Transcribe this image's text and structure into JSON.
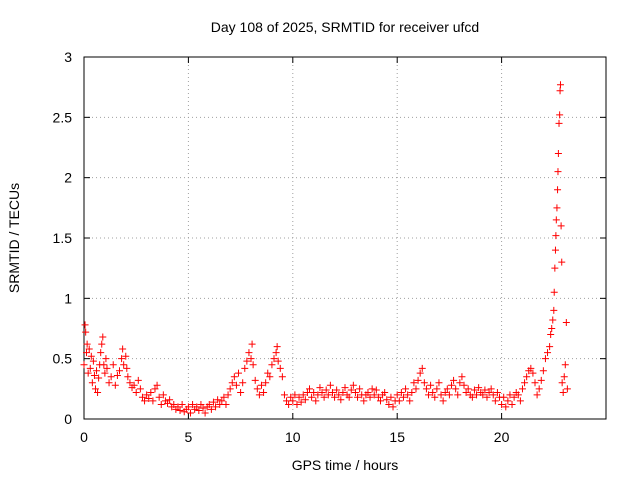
{
  "chart_data": {
    "type": "scatter",
    "title": "Day 108 of 2025, SRMTID for receiver ufcd",
    "xlabel": "GPS time / hours",
    "ylabel": "SRMTID / TECUs",
    "xlim": [
      0,
      25
    ],
    "ylim": [
      0,
      3
    ],
    "xticks": [
      0,
      5,
      10,
      15,
      20
    ],
    "yticks": [
      0,
      0.5,
      1,
      1.5,
      2,
      2.5,
      3
    ],
    "ytick_labels": [
      "0",
      "0.5",
      "1",
      "1.5",
      "2",
      "2.5",
      "3"
    ],
    "grid": true,
    "marker": "+",
    "color": "#ff0000",
    "series": [
      {
        "name": "SRMTID",
        "points": [
          [
            0.0,
            0.45
          ],
          [
            0.05,
            0.78
          ],
          [
            0.08,
            0.72
          ],
          [
            0.12,
            0.55
          ],
          [
            0.15,
            0.62
          ],
          [
            0.2,
            0.38
          ],
          [
            0.25,
            0.58
          ],
          [
            0.3,
            0.42
          ],
          [
            0.35,
            0.52
          ],
          [
            0.4,
            0.3
          ],
          [
            0.45,
            0.48
          ],
          [
            0.5,
            0.36
          ],
          [
            0.55,
            0.25
          ],
          [
            0.6,
            0.4
          ],
          [
            0.65,
            0.22
          ],
          [
            0.7,
            0.34
          ],
          [
            0.75,
            0.45
          ],
          [
            0.8,
            0.55
          ],
          [
            0.85,
            0.62
          ],
          [
            0.9,
            0.68
          ],
          [
            0.95,
            0.45
          ],
          [
            1.0,
            0.38
          ],
          [
            1.05,
            0.5
          ],
          [
            1.1,
            0.42
          ],
          [
            1.2,
            0.3
          ],
          [
            1.3,
            0.35
          ],
          [
            1.4,
            0.45
          ],
          [
            1.5,
            0.28
          ],
          [
            1.6,
            0.36
          ],
          [
            1.7,
            0.4
          ],
          [
            1.8,
            0.5
          ],
          [
            1.85,
            0.58
          ],
          [
            1.9,
            0.45
          ],
          [
            2.0,
            0.52
          ],
          [
            2.05,
            0.42
          ],
          [
            2.1,
            0.35
          ],
          [
            2.2,
            0.3
          ],
          [
            2.3,
            0.26
          ],
          [
            2.4,
            0.28
          ],
          [
            2.5,
            0.22
          ],
          [
            2.6,
            0.32
          ],
          [
            2.7,
            0.25
          ],
          [
            2.8,
            0.18
          ],
          [
            2.9,
            0.15
          ],
          [
            3.0,
            0.2
          ],
          [
            3.1,
            0.17
          ],
          [
            3.2,
            0.22
          ],
          [
            3.3,
            0.15
          ],
          [
            3.4,
            0.25
          ],
          [
            3.5,
            0.28
          ],
          [
            3.6,
            0.18
          ],
          [
            3.7,
            0.12
          ],
          [
            3.8,
            0.2
          ],
          [
            3.9,
            0.15
          ],
          [
            4.0,
            0.13
          ],
          [
            4.1,
            0.16
          ],
          [
            4.2,
            0.1
          ],
          [
            4.3,
            0.12
          ],
          [
            4.4,
            0.08
          ],
          [
            4.5,
            0.1
          ],
          [
            4.6,
            0.07
          ],
          [
            4.7,
            0.12
          ],
          [
            4.8,
            0.06
          ],
          [
            4.9,
            0.08
          ],
          [
            5.0,
            0.1
          ],
          [
            5.1,
            0.05
          ],
          [
            5.2,
            0.12
          ],
          [
            5.3,
            0.08
          ],
          [
            5.4,
            0.1
          ],
          [
            5.5,
            0.07
          ],
          [
            5.6,
            0.12
          ],
          [
            5.7,
            0.09
          ],
          [
            5.8,
            0.05
          ],
          [
            5.9,
            0.1
          ],
          [
            6.0,
            0.12
          ],
          [
            6.1,
            0.08
          ],
          [
            6.2,
            0.14
          ],
          [
            6.3,
            0.1
          ],
          [
            6.4,
            0.16
          ],
          [
            6.5,
            0.12
          ],
          [
            6.6,
            0.15
          ],
          [
            6.7,
            0.18
          ],
          [
            6.8,
            0.12
          ],
          [
            6.9,
            0.2
          ],
          [
            7.0,
            0.25
          ],
          [
            7.1,
            0.3
          ],
          [
            7.2,
            0.35
          ],
          [
            7.3,
            0.28
          ],
          [
            7.4,
            0.38
          ],
          [
            7.5,
            0.22
          ],
          [
            7.6,
            0.3
          ],
          [
            7.7,
            0.42
          ],
          [
            7.8,
            0.48
          ],
          [
            7.9,
            0.55
          ],
          [
            8.0,
            0.5
          ],
          [
            8.05,
            0.62
          ],
          [
            8.1,
            0.45
          ],
          [
            8.2,
            0.32
          ],
          [
            8.3,
            0.25
          ],
          [
            8.4,
            0.2
          ],
          [
            8.5,
            0.28
          ],
          [
            8.6,
            0.22
          ],
          [
            8.7,
            0.3
          ],
          [
            8.8,
            0.38
          ],
          [
            8.9,
            0.35
          ],
          [
            9.0,
            0.45
          ],
          [
            9.1,
            0.5
          ],
          [
            9.2,
            0.55
          ],
          [
            9.25,
            0.6
          ],
          [
            9.3,
            0.48
          ],
          [
            9.4,
            0.42
          ],
          [
            9.5,
            0.35
          ],
          [
            9.6,
            0.2
          ],
          [
            9.7,
            0.15
          ],
          [
            9.8,
            0.12
          ],
          [
            9.9,
            0.18
          ],
          [
            10.0,
            0.15
          ],
          [
            10.1,
            0.2
          ],
          [
            10.2,
            0.12
          ],
          [
            10.3,
            0.18
          ],
          [
            10.4,
            0.14
          ],
          [
            10.5,
            0.2
          ],
          [
            10.6,
            0.16
          ],
          [
            10.7,
            0.22
          ],
          [
            10.8,
            0.25
          ],
          [
            10.9,
            0.18
          ],
          [
            11.0,
            0.22
          ],
          [
            11.1,
            0.15
          ],
          [
            11.2,
            0.2
          ],
          [
            11.3,
            0.26
          ],
          [
            11.4,
            0.22
          ],
          [
            11.5,
            0.18
          ],
          [
            11.6,
            0.24
          ],
          [
            11.7,
            0.2
          ],
          [
            11.8,
            0.28
          ],
          [
            11.9,
            0.22
          ],
          [
            12.0,
            0.18
          ],
          [
            12.1,
            0.24
          ],
          [
            12.2,
            0.2
          ],
          [
            12.3,
            0.16
          ],
          [
            12.4,
            0.22
          ],
          [
            12.5,
            0.26
          ],
          [
            12.6,
            0.2
          ],
          [
            12.7,
            0.18
          ],
          [
            12.8,
            0.24
          ],
          [
            12.9,
            0.28
          ],
          [
            13.0,
            0.22
          ],
          [
            13.1,
            0.18
          ],
          [
            13.2,
            0.25
          ],
          [
            13.3,
            0.2
          ],
          [
            13.4,
            0.15
          ],
          [
            13.5,
            0.2
          ],
          [
            13.6,
            0.22
          ],
          [
            13.7,
            0.18
          ],
          [
            13.8,
            0.25
          ],
          [
            13.9,
            0.2
          ],
          [
            14.0,
            0.24
          ],
          [
            14.1,
            0.18
          ],
          [
            14.2,
            0.15
          ],
          [
            14.3,
            0.2
          ],
          [
            14.4,
            0.22
          ],
          [
            14.5,
            0.16
          ],
          [
            14.6,
            0.12
          ],
          [
            14.7,
            0.18
          ],
          [
            14.8,
            0.1
          ],
          [
            14.9,
            0.15
          ],
          [
            15.0,
            0.2
          ],
          [
            15.1,
            0.15
          ],
          [
            15.2,
            0.22
          ],
          [
            15.3,
            0.18
          ],
          [
            15.4,
            0.25
          ],
          [
            15.5,
            0.2
          ],
          [
            15.6,
            0.15
          ],
          [
            15.7,
            0.22
          ],
          [
            15.8,
            0.3
          ],
          [
            15.9,
            0.25
          ],
          [
            16.0,
            0.32
          ],
          [
            16.1,
            0.38
          ],
          [
            16.2,
            0.42
          ],
          [
            16.3,
            0.3
          ],
          [
            16.4,
            0.25
          ],
          [
            16.5,
            0.2
          ],
          [
            16.6,
            0.28
          ],
          [
            16.7,
            0.22
          ],
          [
            16.8,
            0.18
          ],
          [
            16.9,
            0.25
          ],
          [
            17.0,
            0.3
          ],
          [
            17.1,
            0.2
          ],
          [
            17.2,
            0.15
          ],
          [
            17.3,
            0.22
          ],
          [
            17.4,
            0.25
          ],
          [
            17.5,
            0.2
          ],
          [
            17.6,
            0.28
          ],
          [
            17.7,
            0.32
          ],
          [
            17.8,
            0.25
          ],
          [
            17.9,
            0.2
          ],
          [
            18.0,
            0.3
          ],
          [
            18.1,
            0.35
          ],
          [
            18.2,
            0.28
          ],
          [
            18.3,
            0.22
          ],
          [
            18.4,
            0.25
          ],
          [
            18.5,
            0.2
          ],
          [
            18.6,
            0.18
          ],
          [
            18.7,
            0.24
          ],
          [
            18.8,
            0.2
          ],
          [
            18.9,
            0.26
          ],
          [
            19.0,
            0.22
          ],
          [
            19.1,
            0.2
          ],
          [
            19.2,
            0.24
          ],
          [
            19.3,
            0.18
          ],
          [
            19.4,
            0.22
          ],
          [
            19.5,
            0.25
          ],
          [
            19.6,
            0.2
          ],
          [
            19.7,
            0.15
          ],
          [
            19.8,
            0.22
          ],
          [
            19.9,
            0.18
          ],
          [
            20.0,
            0.12
          ],
          [
            20.1,
            0.18
          ],
          [
            20.2,
            0.1
          ],
          [
            20.3,
            0.15
          ],
          [
            20.4,
            0.2
          ],
          [
            20.5,
            0.12
          ],
          [
            20.6,
            0.18
          ],
          [
            20.7,
            0.22
          ],
          [
            20.8,
            0.2
          ],
          [
            20.9,
            0.15
          ],
          [
            21.0,
            0.25
          ],
          [
            21.1,
            0.3
          ],
          [
            21.2,
            0.35
          ],
          [
            21.3,
            0.4
          ],
          [
            21.4,
            0.42
          ],
          [
            21.5,
            0.38
          ],
          [
            21.6,
            0.3
          ],
          [
            21.7,
            0.2
          ],
          [
            21.8,
            0.25
          ],
          [
            21.9,
            0.32
          ],
          [
            22.0,
            0.4
          ],
          [
            22.1,
            0.5
          ],
          [
            22.2,
            0.55
          ],
          [
            22.3,
            0.6
          ],
          [
            22.35,
            0.7
          ],
          [
            22.4,
            0.75
          ],
          [
            22.45,
            0.82
          ],
          [
            22.5,
            0.9
          ],
          [
            22.52,
            1.05
          ],
          [
            22.55,
            1.25
          ],
          [
            22.58,
            1.4
          ],
          [
            22.6,
            1.52
          ],
          [
            22.62,
            1.65
          ],
          [
            22.65,
            1.75
          ],
          [
            22.68,
            1.9
          ],
          [
            22.7,
            2.05
          ],
          [
            22.72,
            2.2
          ],
          [
            22.75,
            2.45
          ],
          [
            22.78,
            2.52
          ],
          [
            22.8,
            2.72
          ],
          [
            22.82,
            2.77
          ],
          [
            22.85,
            1.6
          ],
          [
            22.88,
            1.3
          ],
          [
            22.9,
            0.3
          ],
          [
            22.95,
            0.22
          ],
          [
            23.0,
            0.35
          ],
          [
            23.05,
            0.45
          ],
          [
            23.1,
            0.8
          ],
          [
            23.15,
            0.25
          ]
        ]
      }
    ]
  }
}
